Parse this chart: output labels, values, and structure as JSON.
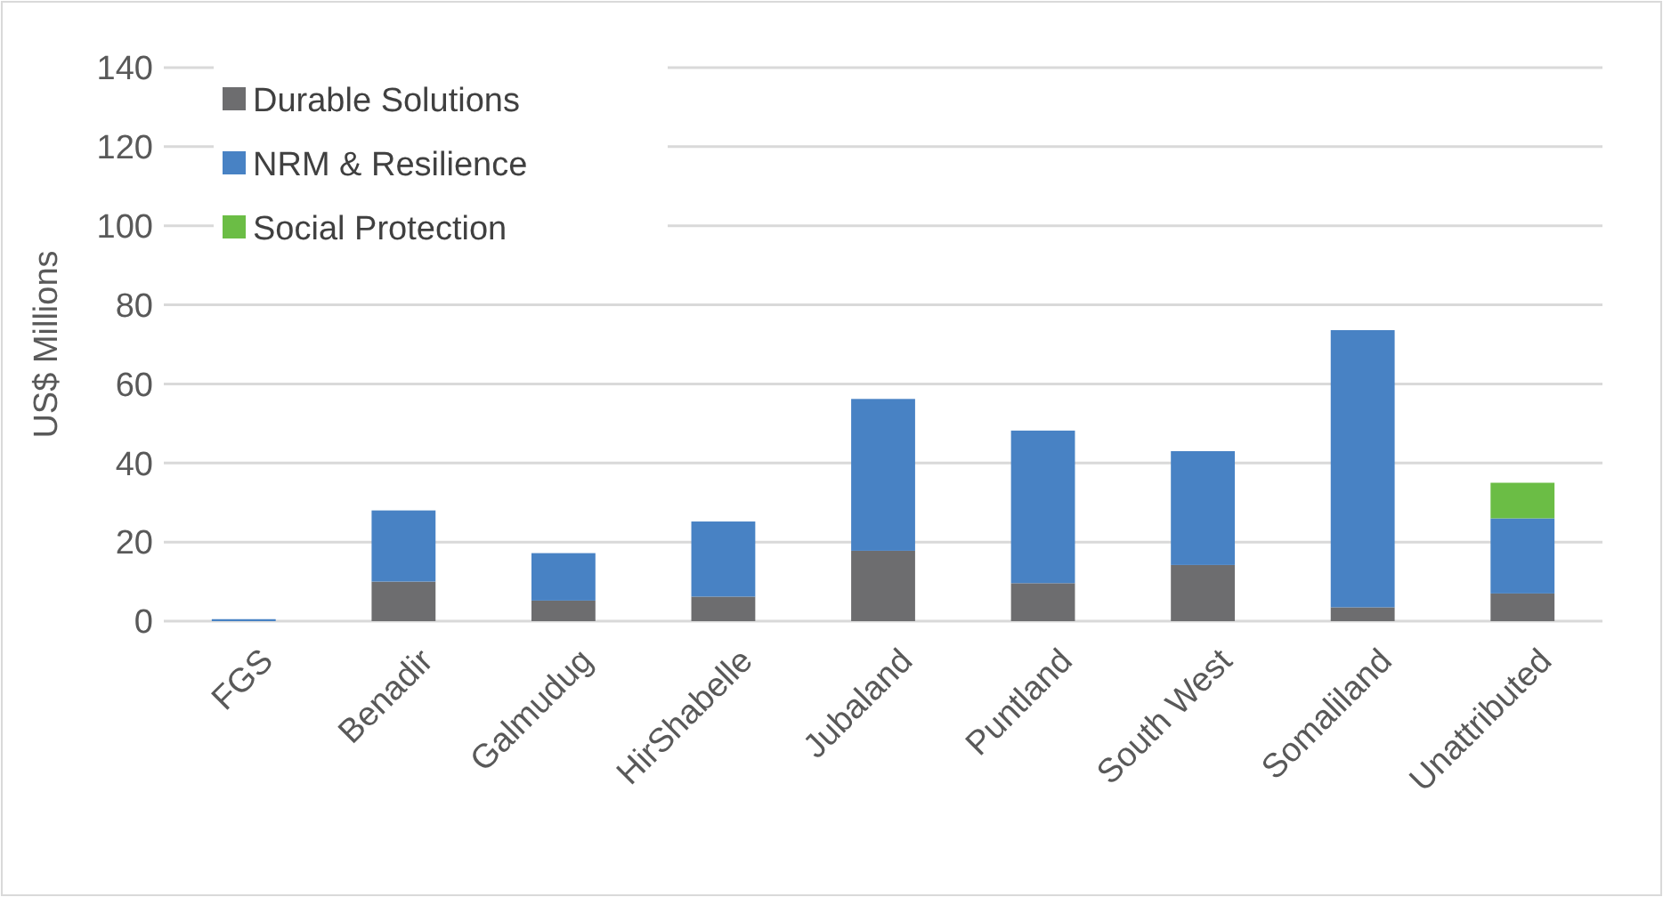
{
  "chart_data": {
    "type": "bar",
    "stacked": true,
    "ylabel": "US$ Millions",
    "categories": [
      "FGS",
      "Benadir",
      "Galmudug",
      "HirShabelle",
      "Jubaland",
      "Puntland",
      "South West",
      "Somaliland",
      "Unattributed"
    ],
    "series": [
      {
        "name": "Durable Solutions",
        "color": "#6d6d6f",
        "values": [
          0,
          10,
          5.2,
          6.2,
          17.8,
          9.6,
          14.2,
          3.5,
          7
        ]
      },
      {
        "name": "NRM & Resilience",
        "color": "#4882c4",
        "values": [
          0.5,
          18,
          12,
          19,
          38.4,
          38.6,
          28.8,
          70.1,
          19
        ]
      },
      {
        "name": "Social Protection",
        "color": "#6bbd45",
        "values": [
          0,
          0,
          0,
          0,
          0,
          0,
          0,
          0,
          9
        ]
      }
    ],
    "ylim": [
      0,
      140
    ],
    "yticks": [
      0,
      20,
      40,
      60,
      80,
      100,
      120,
      140
    ],
    "grid": "y",
    "legend": "top left"
  }
}
